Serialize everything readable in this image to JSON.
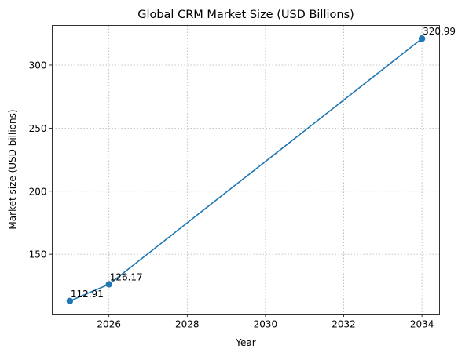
{
  "chart_data": {
    "type": "line",
    "title": "Global CRM Market Size (USD Billions)",
    "xlabel": "Year",
    "ylabel": "Market size (USD billions)",
    "xlim": [
      2024.55,
      2034.45
    ],
    "ylim": [
      102.5,
      331.4
    ],
    "x_ticks": [
      2026,
      2028,
      2030,
      2032,
      2034
    ],
    "y_ticks": [
      150,
      200,
      250,
      300
    ],
    "grid": true,
    "series": [
      {
        "color": "#1f77b4",
        "points": [
          {
            "x": 2025,
            "y": 112.91,
            "label": "112.91"
          },
          {
            "x": 2026,
            "y": 126.17,
            "label": "126.17"
          },
          {
            "x": 2034,
            "y": 320.99,
            "label": "320.99"
          }
        ]
      }
    ]
  }
}
